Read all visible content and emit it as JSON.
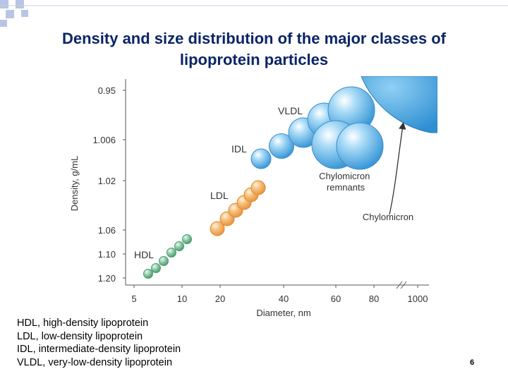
{
  "slide": {
    "title_line1": "Density and size distribution of the major classes of",
    "title_line2": "lipoprotein particles",
    "legend": [
      "HDL, high-density lipoprotein",
      "LDL, low-density lipoprotein",
      "IDL, intermediate-density lipoprotein",
      "VLDL, very-low-density lipoprotein"
    ],
    "page_number": "6"
  },
  "colors": {
    "title": "#0a2566",
    "corner_squares": "#b9c6e3",
    "hdl": "#7cbf99",
    "ldl": "#f4b065",
    "idl": "#70b7e6",
    "vldl": "#5aaee6",
    "chylomicron": "#4fa7e2"
  },
  "chart_data": {
    "type": "scatter",
    "xlabel": "Diameter, nm",
    "ylabel": "Density, g/mL",
    "x_ticks": [
      "5",
      "10",
      "20",
      "40",
      "60",
      "80",
      "1000"
    ],
    "y_ticks": [
      "0.95",
      "1.006",
      "1.02",
      "1.06",
      "1.10",
      "1.20"
    ],
    "axis_break_x": "between 80 and 1000",
    "series": [
      {
        "name": "HDL",
        "points": [
          [
            7,
            1.2
          ],
          [
            8,
            1.18
          ],
          [
            9,
            1.16
          ],
          [
            10,
            1.14
          ],
          [
            11,
            1.12
          ],
          [
            12,
            1.1
          ]
        ]
      },
      {
        "name": "LDL",
        "points": [
          [
            20,
            1.063
          ],
          [
            22,
            1.05
          ],
          [
            24,
            1.04
          ],
          [
            26,
            1.033
          ],
          [
            28,
            1.026
          ],
          [
            30,
            1.019
          ]
        ]
      },
      {
        "name": "IDL",
        "points": [
          [
            27,
            1.015
          ],
          [
            33,
            1.008
          ]
        ]
      },
      {
        "name": "VLDL",
        "points": [
          [
            40,
            1.006
          ],
          [
            45,
            1.0
          ],
          [
            50,
            0.99
          ],
          [
            60,
            0.98
          ],
          [
            70,
            0.97
          ],
          [
            80,
            0.96
          ]
        ]
      },
      {
        "name": "Chylomicron remnants",
        "points": [
          [
            60,
            1.006
          ],
          [
            80,
            1.006
          ]
        ]
      },
      {
        "name": "Chylomicron",
        "points": [
          [
            1000,
            0.93
          ]
        ]
      }
    ],
    "annotations": [
      "VLDL",
      "IDL",
      "LDL",
      "HDL",
      "Chylomicron remnants",
      "Chylomicron"
    ]
  }
}
